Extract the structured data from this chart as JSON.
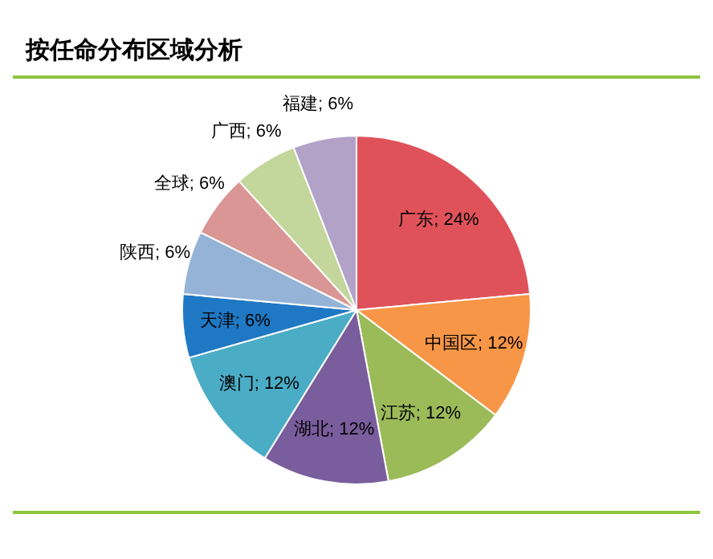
{
  "chart_data": {
    "type": "pie",
    "title": "按任命分布区域分析",
    "categories": [
      "广东",
      "中国区",
      "江苏",
      "湖北",
      "澳门",
      "天津",
      "陕西",
      "全球",
      "广西",
      "福建"
    ],
    "values": [
      24,
      12,
      12,
      12,
      12,
      6,
      6,
      6,
      6,
      6
    ],
    "colors": [
      "#e0525a",
      "#f79646",
      "#9bbb59",
      "#7a5d9c",
      "#4bacc6",
      "#1f78c4",
      "#95b3d7",
      "#d99694",
      "#c3d69b",
      "#b2a2c7"
    ],
    "value_labels": [
      "24%",
      "12%",
      "12%",
      "12%",
      "12%",
      "6%",
      "6%",
      "6%",
      "6%",
      "6%"
    ],
    "legend": false
  }
}
